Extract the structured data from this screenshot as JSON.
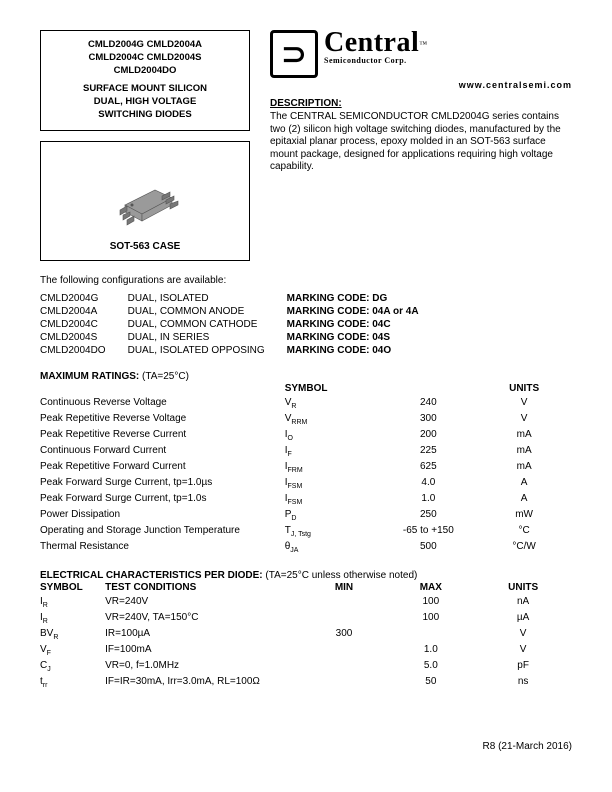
{
  "header": {
    "part_numbers_lines": [
      "CMLD2004G   CMLD2004A",
      "CMLD2004C   CMLD2004S",
      "CMLD2004DO"
    ],
    "subtitle_lines": [
      "SURFACE MOUNT SILICON",
      "DUAL, HIGH VOLTAGE",
      "SWITCHING DIODES"
    ],
    "case_label": "SOT-563 CASE"
  },
  "logo": {
    "brand": "Central",
    "sub": "Semiconductor Corp.",
    "mark_glyph": "⊃",
    "tm": "™"
  },
  "website": "www.centralsemi.com",
  "description": {
    "head": "DESCRIPTION:",
    "body": "The CENTRAL SEMICONDUCTOR CMLD2004G series contains two (2) silicon high voltage switching diodes, manufactured by the epitaxial planar process, epoxy molded in an SOT-563 surface mount package, designed for applications requiring high voltage capability."
  },
  "config_intro": "The following configurations are available:",
  "configs": [
    {
      "part": "CMLD2004G",
      "desc": "DUAL, ISOLATED",
      "mark": "MARKING CODE: DG"
    },
    {
      "part": "CMLD2004A",
      "desc": "DUAL, COMMON ANODE",
      "mark": "MARKING CODE: 04A or 4A"
    },
    {
      "part": "CMLD2004C",
      "desc": "DUAL, COMMON CATHODE",
      "mark": "MARKING CODE: 04C"
    },
    {
      "part": "CMLD2004S",
      "desc": "DUAL, IN SERIES",
      "mark": "MARKING CODE: 04S"
    },
    {
      "part": "CMLD2004DO",
      "desc": "DUAL, ISOLATED OPPOSING",
      "mark": "MARKING CODE: 04O"
    }
  ],
  "ratings": {
    "head_label": "MAXIMUM RATINGS:",
    "head_cond": "(TA=25°C)",
    "col_symbol": "SYMBOL",
    "col_units": "UNITS",
    "rows": [
      {
        "name": "Continuous Reverse Voltage",
        "sym": "V",
        "sub": "R",
        "val": "240",
        "unit": "V"
      },
      {
        "name": "Peak Repetitive Reverse Voltage",
        "sym": "V",
        "sub": "RRM",
        "val": "300",
        "unit": "V"
      },
      {
        "name": "Peak Repetitive Reverse Current",
        "sym": "I",
        "sub": "O",
        "val": "200",
        "unit": "mA"
      },
      {
        "name": "Continuous Forward Current",
        "sym": "I",
        "sub": "F",
        "val": "225",
        "unit": "mA"
      },
      {
        "name": "Peak Repetitive Forward Current",
        "sym": "I",
        "sub": "FRM",
        "val": "625",
        "unit": "mA"
      },
      {
        "name": "Peak Forward Surge Current, tp=1.0µs",
        "sym": "I",
        "sub": "FSM",
        "val": "4.0",
        "unit": "A"
      },
      {
        "name": "Peak Forward Surge Current, tp=1.0s",
        "sym": "I",
        "sub": "FSM",
        "val": "1.0",
        "unit": "A"
      },
      {
        "name": "Power Dissipation",
        "sym": "P",
        "sub": "D",
        "val": "250",
        "unit": "mW"
      },
      {
        "name": "Operating and Storage Junction Temperature",
        "sym": "T",
        "sub": "J, Tstg",
        "val": "-65 to +150",
        "unit": "°C"
      },
      {
        "name": "Thermal Resistance",
        "sym": "θ",
        "sub": "JA",
        "val": "500",
        "unit": "°C/W"
      }
    ]
  },
  "elec": {
    "head_label": "ELECTRICAL CHARACTERISTICS PER DIODE:",
    "head_cond": "(TA=25°C unless otherwise noted)",
    "cols": {
      "sym": "SYMBOL",
      "cond": "TEST CONDITIONS",
      "min": "MIN",
      "max": "MAX",
      "units": "UNITS"
    },
    "rows": [
      {
        "sym": "I",
        "sub": "R",
        "cond": "VR=240V",
        "min": "",
        "max": "100",
        "unit": "nA"
      },
      {
        "sym": "I",
        "sub": "R",
        "cond": "VR=240V, TA=150°C",
        "min": "",
        "max": "100",
        "unit": "µA"
      },
      {
        "sym": "BV",
        "sub": "R",
        "cond": "IR=100µA",
        "min": "300",
        "max": "",
        "unit": "V"
      },
      {
        "sym": "V",
        "sub": "F",
        "cond": "IF=100mA",
        "min": "",
        "max": "1.0",
        "unit": "V"
      },
      {
        "sym": "C",
        "sub": "J",
        "cond": "VR=0, f=1.0MHz",
        "min": "",
        "max": "5.0",
        "unit": "pF"
      },
      {
        "sym": "t",
        "sub": "rr",
        "cond": "IF=IR=30mA, Irr=3.0mA, RL=100Ω",
        "min": "",
        "max": "50",
        "unit": "ns"
      }
    ]
  },
  "revision": "R8 (21-March 2016)"
}
